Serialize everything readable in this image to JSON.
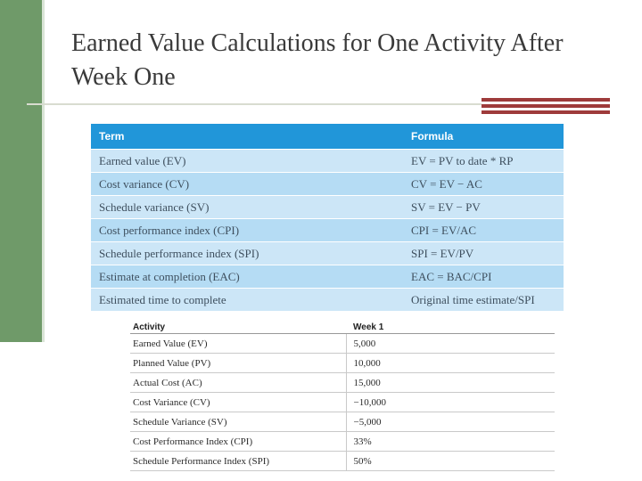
{
  "title": "Earned Value Calculations for One Activity After Week One",
  "formula_table": {
    "headers": {
      "term": "Term",
      "formula": "Formula"
    },
    "rows": [
      {
        "term": "Earned value (EV)",
        "formula": "EV = PV to date * RP"
      },
      {
        "term": "Cost variance (CV)",
        "formula": "CV = EV − AC"
      },
      {
        "term": "Schedule variance (SV)",
        "formula": "SV = EV − PV"
      },
      {
        "term": "Cost performance index (CPI)",
        "formula": "CPI = EV/AC"
      },
      {
        "term": "Schedule performance index (SPI)",
        "formula": "SPI = EV/PV"
      },
      {
        "term": "Estimate at completion (EAC)",
        "formula": "EAC = BAC/CPI"
      },
      {
        "term": "Estimated time to complete",
        "formula": "Original time estimate/SPI"
      }
    ]
  },
  "week_table": {
    "headers": {
      "activity": "Activity",
      "week": "Week 1"
    },
    "rows": [
      {
        "activity": "Earned Value (EV)",
        "value": "5,000"
      },
      {
        "activity": "Planned Value (PV)",
        "value": "10,000"
      },
      {
        "activity": "Actual Cost (AC)",
        "value": "15,000"
      },
      {
        "activity": "Cost Variance (CV)",
        "value": "−10,000"
      },
      {
        "activity": "Schedule Variance (SV)",
        "value": "−5,000"
      },
      {
        "activity": "Cost Performance Index (CPI)",
        "value": "33%"
      },
      {
        "activity": "Schedule Performance Index (SPI)",
        "value": "50%"
      }
    ]
  },
  "colors": {
    "sidebar": "#6f9a69",
    "accent": "#9e3b3b",
    "table_header": "#2196d9"
  }
}
